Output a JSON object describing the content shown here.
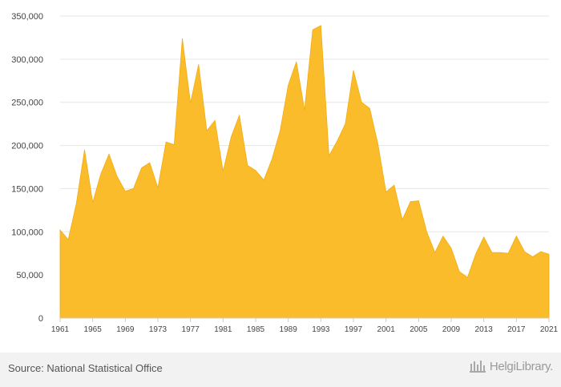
{
  "chart_data": {
    "type": "area",
    "title": "",
    "xlabel": "",
    "ylabel": "",
    "color": "#fbbc2b",
    "grid": true,
    "ylim": [
      0,
      350000
    ],
    "yticks": [
      "0",
      "50,000",
      "100,000",
      "150,000",
      "200,000",
      "250,000",
      "300,000",
      "350,000"
    ],
    "ytick_values": [
      0,
      50000,
      100000,
      150000,
      200000,
      250000,
      300000,
      350000
    ],
    "xticks": [
      "1961",
      "1965",
      "1969",
      "1973",
      "1977",
      "1981",
      "1985",
      "1989",
      "1993",
      "1997",
      "2001",
      "2005",
      "2009",
      "2013",
      "2017",
      "2021"
    ],
    "x": [
      1961,
      1962,
      1963,
      1964,
      1965,
      1966,
      1967,
      1968,
      1969,
      1970,
      1971,
      1972,
      1973,
      1974,
      1975,
      1976,
      1977,
      1978,
      1979,
      1980,
      1981,
      1982,
      1983,
      1984,
      1985,
      1986,
      1987,
      1988,
      1989,
      1990,
      1991,
      1992,
      1993,
      1994,
      1995,
      1996,
      1997,
      1998,
      1999,
      2000,
      2001,
      2002,
      2003,
      2004,
      2005,
      2006,
      2007,
      2008,
      2009,
      2010,
      2011,
      2012,
      2013,
      2014,
      2015,
      2016,
      2017,
      2018,
      2019,
      2020,
      2021
    ],
    "values": [
      102000,
      91000,
      133000,
      195000,
      134000,
      167000,
      190000,
      164000,
      147000,
      150000,
      174000,
      180000,
      151000,
      204000,
      201000,
      324000,
      249000,
      294000,
      217000,
      229000,
      170000,
      210000,
      235000,
      177000,
      171000,
      160000,
      184000,
      217000,
      270000,
      297000,
      241000,
      334000,
      339000,
      188000,
      205000,
      225000,
      287000,
      250000,
      243000,
      202000,
      146000,
      154000,
      114000,
      135000,
      136000,
      100000,
      76000,
      95000,
      81000,
      54000,
      47000,
      74000,
      94000,
      76000,
      76000,
      75000,
      95000,
      77000,
      71000,
      77000,
      74000
    ]
  },
  "footer": {
    "source": "Source: National Statistical Office",
    "logo_text": "HelgiLibrary."
  },
  "colors": {
    "area": "#fbbc2b",
    "grid": "#e6e6e6",
    "footer_bg": "#f2f2f2"
  }
}
